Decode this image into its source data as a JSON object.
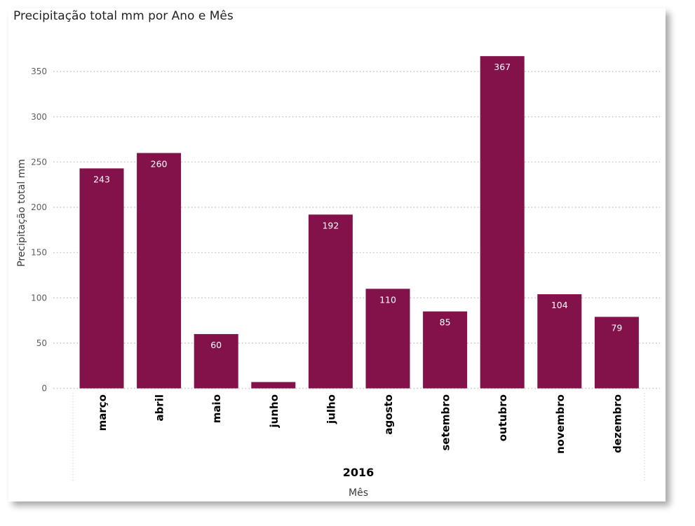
{
  "chart_data": {
    "type": "bar",
    "title": "Precipitação total mm por Ano e Mês",
    "xlabel": "Mês",
    "ylabel": "Precipitação total mm",
    "group_label": "2016",
    "categories": [
      "março",
      "abril",
      "maio",
      "junho",
      "julho",
      "agosto",
      "setembro",
      "outubro",
      "novembro",
      "dezembro"
    ],
    "values": [
      243,
      260,
      60,
      7,
      192,
      110,
      85,
      367,
      104,
      79
    ],
    "data_labels": [
      "243",
      "260",
      "60",
      "",
      "192",
      "110",
      "85",
      "367",
      "104",
      "79"
    ],
    "yticks": [
      0,
      50,
      100,
      150,
      200,
      250,
      300,
      350
    ],
    "ylim": [
      0,
      367
    ],
    "grid": true,
    "bar_color": "#84124A"
  }
}
